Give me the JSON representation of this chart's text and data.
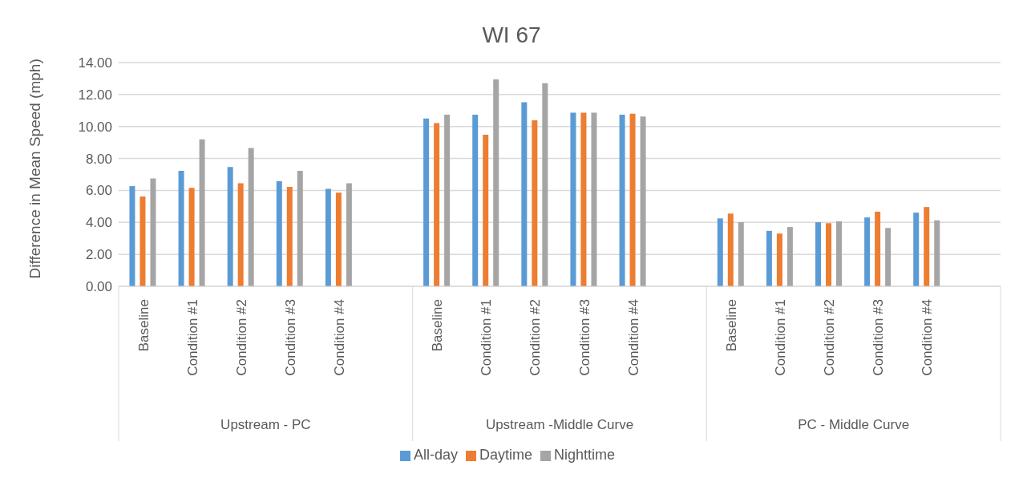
{
  "chart_data": {
    "type": "bar",
    "title": "WI 67",
    "ylabel": "Difference in Mean Speed (mph)",
    "categories": [
      "Baseline",
      "Condition #1",
      "Condition #2",
      "Condition #3",
      "Condition #4",
      null,
      "Baseline",
      "Condition #1",
      "Condition #2",
      "Condition #3",
      "Condition #4",
      null,
      "Baseline",
      "Condition #1",
      "Condition #2",
      "Condition #3",
      "Condition #4",
      null
    ],
    "annotations": [
      "Upstream - PC",
      "Upstream -Middle Curve",
      "PC - Middle Curve"
    ],
    "series": [
      {
        "name": "All-day",
        "color": "#5b9bd5",
        "values": [
          6.27,
          7.23,
          7.47,
          6.57,
          6.1,
          null,
          10.5,
          10.74,
          11.52,
          10.86,
          10.74,
          null,
          4.25,
          3.47,
          4.01,
          4.31,
          4.61,
          null
        ]
      },
      {
        "name": "Daytime",
        "color": "#ed7d31",
        "values": [
          5.62,
          6.16,
          6.45,
          6.22,
          5.86,
          null,
          10.21,
          9.49,
          10.39,
          10.86,
          10.8,
          null,
          4.55,
          3.3,
          3.95,
          4.67,
          4.96,
          null
        ]
      },
      {
        "name": "Nighttime",
        "color": "#a5a5a5",
        "values": [
          6.75,
          9.19,
          8.66,
          7.23,
          6.45,
          null,
          10.74,
          12.95,
          12.71,
          10.86,
          10.62,
          null,
          4.01,
          3.71,
          4.07,
          3.65,
          4.13,
          null
        ]
      }
    ],
    "ylim": [
      0,
      14
    ],
    "yticks": [
      {
        "value": 0,
        "label": "0.00"
      },
      {
        "value": 2,
        "label": "2.00"
      },
      {
        "value": 4,
        "label": "4.00"
      },
      {
        "value": 6,
        "label": "6.00"
      },
      {
        "value": 8,
        "label": "8.00"
      },
      {
        "value": 10,
        "label": "10.00"
      },
      {
        "value": 12,
        "label": "12.00"
      },
      {
        "value": 14,
        "label": "14.00"
      }
    ],
    "grid": "y",
    "legend": "bottom"
  }
}
